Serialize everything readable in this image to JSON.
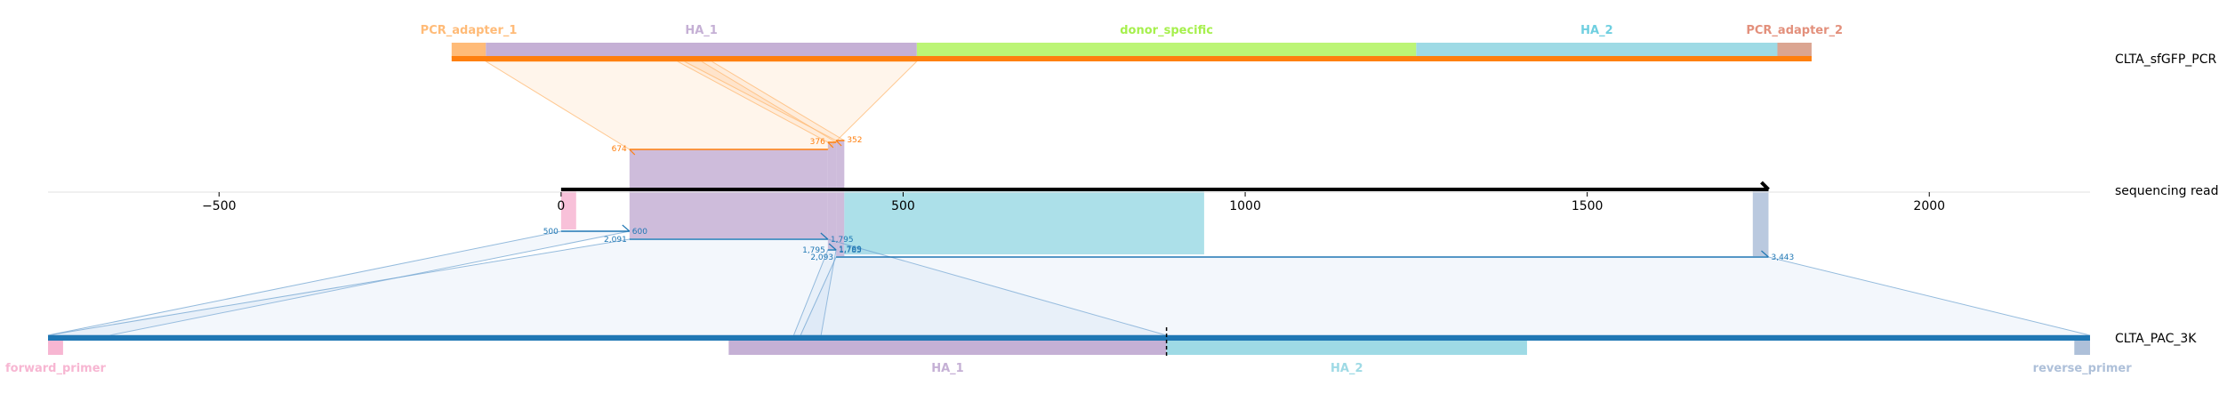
{
  "tracks": {
    "pcr": {
      "name": "CLTA_sfGFP_PCR",
      "color": "#ff7f0e"
    },
    "read": {
      "name": "sequencing read",
      "color": "#000000"
    },
    "pac": {
      "name": "CLTA_PAC_3K",
      "color": "#1f77b4"
    }
  },
  "axis": {
    "min": -750,
    "max": 2235,
    "ticks": [
      -500,
      0,
      500,
      1000,
      1500,
      2000
    ],
    "tick_labels": [
      "−500",
      "0",
      "500",
      "1000",
      "1500",
      "2000"
    ],
    "read_start": 0,
    "read_end": 1765
  },
  "pcr_features": [
    {
      "label": "PCR_adapter_1",
      "start": -160,
      "end": -110,
      "color": "#ffbb78",
      "label_color": "#ffbb78"
    },
    {
      "label": "HA_1",
      "start": -110,
      "end": 520,
      "color": "#c5b0d5",
      "label_color": "#c5b0d5"
    },
    {
      "label": "donor_specific",
      "start": 520,
      "end": 1250,
      "color": "#bcf576",
      "label_color": "#a6f04d"
    },
    {
      "label": "HA_2",
      "start": 1250,
      "end": 1778,
      "color": "#9edae5",
      "label_color": "#6fcfe0"
    },
    {
      "label": "PCR_adapter_2",
      "start": 1778,
      "end": 1828,
      "color": "#dba591",
      "label_color": "#e3907c"
    }
  ],
  "pac_features": [
    {
      "label": "forward_primer",
      "start": -750,
      "end": -728,
      "color": "#f7b6d2",
      "label_color": "#f7b6d2"
    },
    {
      "label": "HA_1",
      "start": 245,
      "end": 885,
      "color": "#c5b0d5",
      "label_color": "#c5b0d5"
    },
    {
      "label": "HA_2",
      "start": 885,
      "end": 1412,
      "color": "#9edae5",
      "label_color": "#9edae5"
    },
    {
      "label": "reverse_primer",
      "start": 2212,
      "end": 2235,
      "color": "#aec0d9",
      "label_color": "#aec0d9"
    }
  ],
  "pcr_alignments": [
    {
      "read_start": 100,
      "read_end": 390,
      "ref_start": -110,
      "ref_end": 520,
      "tip_label": "674",
      "tip_label_at": "start"
    },
    {
      "read_start": 390,
      "read_end": 402,
      "ref_start": 170,
      "ref_end": 205,
      "tip_label": "376",
      "tip_label_at": "start"
    },
    {
      "read_start": 402,
      "read_end": 414,
      "ref_start": 180,
      "ref_end": 220,
      "tip_label": "352",
      "tip_label_at": "end"
    }
  ],
  "pac_alignments": [
    {
      "read_start": 0,
      "read_end": 100,
      "ref_start": -750,
      "ref_end": -660,
      "start_label": "500",
      "end_label": "600"
    },
    {
      "read_start": 100,
      "read_end": 390,
      "ref_start": -750,
      "ref_end": 885,
      "start_label": "2,091",
      "end_label": "1,795"
    },
    {
      "read_start": 390,
      "read_end": 402,
      "ref_start": 340,
      "ref_end": 380,
      "start_label": "1,795",
      "end_label": "1,785"
    },
    {
      "read_start": 402,
      "read_end": 1765,
      "ref_start": 350,
      "ref_end": 2235,
      "start_label": "2,093",
      "end_label": "3,443",
      "extra_label": "1,769"
    }
  ],
  "read_segments": [
    {
      "start": 0,
      "end": 22,
      "color": "#f7b6d2"
    },
    {
      "start": 100,
      "end": 390,
      "color": "#c5b0d5"
    },
    {
      "start": 390,
      "end": 402,
      "color": "#c5b0d5"
    },
    {
      "start": 402,
      "end": 414,
      "color": "#c5b0d5"
    },
    {
      "start": 414,
      "end": 940,
      "color": "#9edae5"
    },
    {
      "start": 1742,
      "end": 1765,
      "color": "#aec0d9"
    }
  ],
  "dashed_marker": {
    "ref": 885
  }
}
